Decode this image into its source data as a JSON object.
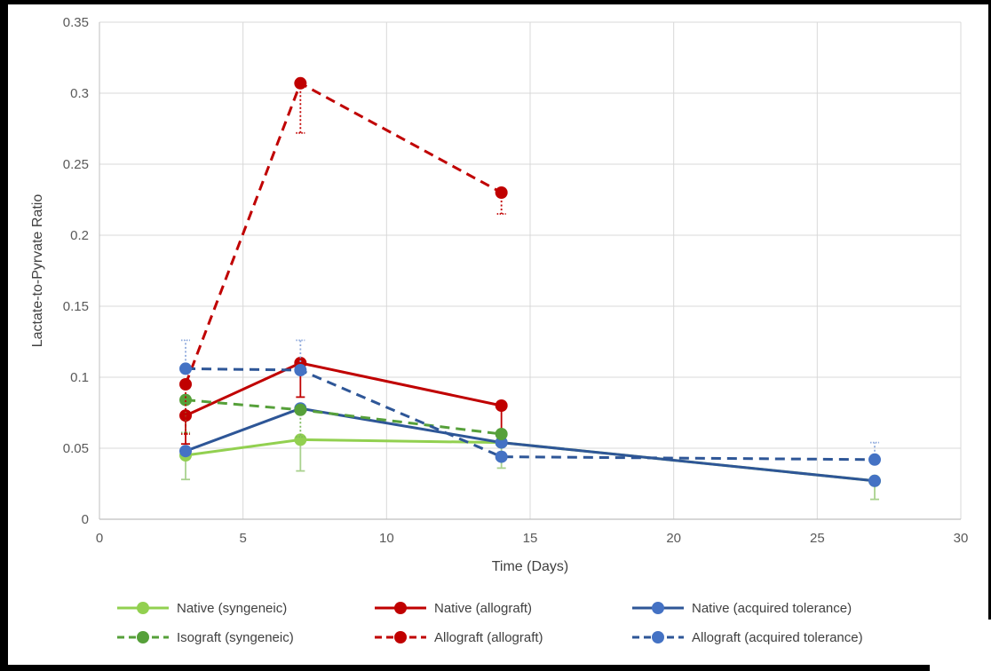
{
  "chart_data": {
    "type": "line",
    "title": "",
    "xlabel": "Time (Days)",
    "ylabel": "Lactate-to-Pyrvate Ratio",
    "xlim": [
      0,
      30
    ],
    "ylim": [
      0,
      0.35
    ],
    "grid": true,
    "legend_position": "bottom",
    "axis_color": "#bfbfbf",
    "grid_color": "#d9d9d9",
    "tick_label_color": "#595959",
    "xticks": [
      {
        "v": 0,
        "label": "0"
      },
      {
        "v": 5,
        "label": "5"
      },
      {
        "v": 10,
        "label": "10"
      },
      {
        "v": 15,
        "label": "15"
      },
      {
        "v": 20,
        "label": "20"
      },
      {
        "v": 25,
        "label": "25"
      },
      {
        "v": 30,
        "label": "30"
      }
    ],
    "yticks": [
      {
        "v": 0,
        "label": "0"
      },
      {
        "v": 0.05,
        "label": "0.05"
      },
      {
        "v": 0.1,
        "label": "0.1"
      },
      {
        "v": 0.15,
        "label": "0.15"
      },
      {
        "v": 0.2,
        "label": "0.2"
      },
      {
        "v": 0.25,
        "label": "0.25"
      },
      {
        "v": 0.3,
        "label": "0.3"
      },
      {
        "v": 0.35,
        "label": "0.35"
      }
    ],
    "series": [
      {
        "name": "Native (syngeneic)",
        "line_color": "#92D050",
        "marker_color": "#92D050",
        "err_color": "#A9D18E",
        "style": "solid",
        "err_style": "solid",
        "points": [
          {
            "x": 3,
            "y": 0.045,
            "err_lo": 0.028
          },
          {
            "x": 7,
            "y": 0.056,
            "err_lo": 0.034
          },
          {
            "x": 14,
            "y": 0.054,
            "err_lo": 0.036
          },
          {
            "x": 27,
            "y": 0.027,
            "err_lo": 0.014
          }
        ]
      },
      {
        "name": "Native (allograft)",
        "line_color": "#C00000",
        "marker_color": "#C00000",
        "err_color": "#C00000",
        "style": "solid",
        "err_style": "solid",
        "points": [
          {
            "x": 3,
            "y": 0.073,
            "err_lo": 0.053
          },
          {
            "x": 7,
            "y": 0.11,
            "err_lo": 0.086
          },
          {
            "x": 14,
            "y": 0.08,
            "err_lo": 0.061
          }
        ]
      },
      {
        "name": "Native (acquired tolerance)",
        "line_color": "#2E5697",
        "marker_color": "#4472C4",
        "err_color": "#8FAADC",
        "style": "solid",
        "err_style": "solid",
        "points": [
          {
            "x": 3,
            "y": 0.048
          },
          {
            "x": 7,
            "y": 0.078
          },
          {
            "x": 14,
            "y": 0.054
          },
          {
            "x": 27,
            "y": 0.027
          }
        ]
      },
      {
        "name": "Isograft (syngeneic)",
        "line_color": "#56A03A",
        "marker_color": "#56A03A",
        "err_color": "#7CB85C",
        "style": "dashed",
        "err_style": "dotted",
        "points": [
          {
            "x": 3,
            "y": 0.084,
            "err_lo": 0.061
          },
          {
            "x": 7,
            "y": 0.077,
            "err_lo": 0.058
          },
          {
            "x": 14,
            "y": 0.06
          }
        ]
      },
      {
        "name": "Allograft (allograft)",
        "line_color": "#C00000",
        "marker_color": "#C00000",
        "err_color": "#C00000",
        "style": "dashed",
        "err_style": "dotted",
        "points": [
          {
            "x": 3,
            "y": 0.095,
            "err_lo": 0.06
          },
          {
            "x": 7,
            "y": 0.307,
            "err_lo": 0.272
          },
          {
            "x": 14,
            "y": 0.23,
            "err_lo": 0.215
          }
        ]
      },
      {
        "name": "Allograft (acquired tolerance)",
        "line_color": "#2E5697",
        "marker_color": "#4472C4",
        "err_color": "#8FAADC",
        "style": "dashed",
        "err_style": "dotted",
        "points": [
          {
            "x": 3,
            "y": 0.106,
            "err_hi": 0.126
          },
          {
            "x": 7,
            "y": 0.105,
            "err_hi": 0.126
          },
          {
            "x": 14,
            "y": 0.044
          },
          {
            "x": 27,
            "y": 0.042,
            "err_hi": 0.054
          }
        ]
      }
    ]
  }
}
